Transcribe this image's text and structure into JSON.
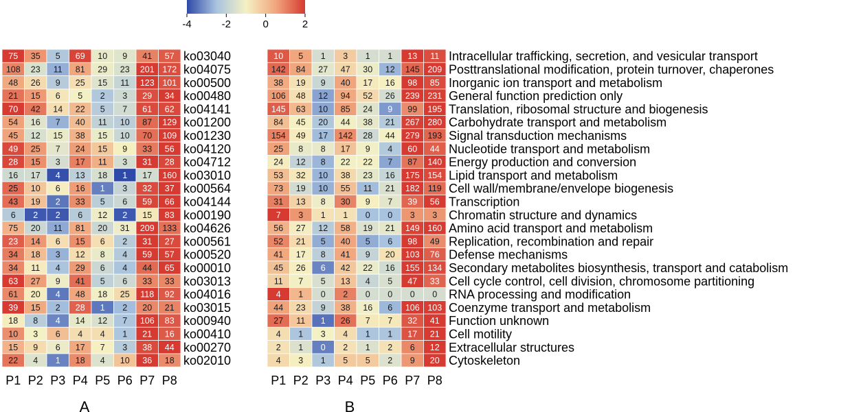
{
  "colorbar": {
    "ticks": [
      "-4",
      "-2",
      "0",
      "2"
    ],
    "stops": [
      "#2f49a8",
      "#a9c3df",
      "#f5f1c4",
      "#f1a77e",
      "#d63a31"
    ],
    "range": [
      -4,
      2
    ]
  },
  "chart_data": [
    {
      "type": "heatmap",
      "panel_label": "A",
      "columns": [
        "P1",
        "P2",
        "P3",
        "P4",
        "P5",
        "P6",
        "P7",
        "P8"
      ],
      "rows": [
        "ko03040",
        "ko04075",
        "ko00500",
        "ko00480",
        "ko04141",
        "ko01200",
        "ko01230",
        "ko04120",
        "ko04712",
        "ko03010",
        "ko00564",
        "ko04144",
        "ko00190",
        "ko04626",
        "ko00561",
        "ko00520",
        "ko00010",
        "ko03013",
        "ko04016",
        "ko03015",
        "ko00940",
        "ko00410",
        "ko00270",
        "ko02010"
      ],
      "values": [
        [
          75,
          35,
          5,
          69,
          10,
          9,
          41,
          57
        ],
        [
          108,
          23,
          11,
          81,
          29,
          23,
          201,
          172
        ],
        [
          48,
          26,
          9,
          25,
          15,
          11,
          123,
          101
        ],
        [
          21,
          15,
          6,
          5,
          2,
          3,
          29,
          34
        ],
        [
          70,
          42,
          14,
          22,
          5,
          7,
          61,
          62
        ],
        [
          54,
          16,
          7,
          40,
          11,
          10,
          87,
          129
        ],
        [
          45,
          12,
          15,
          38,
          15,
          10,
          70,
          109
        ],
        [
          49,
          25,
          7,
          24,
          15,
          9,
          33,
          56
        ],
        [
          28,
          15,
          3,
          17,
          11,
          3,
          31,
          28
        ],
        [
          16,
          17,
          4,
          13,
          18,
          1,
          17,
          160
        ],
        [
          25,
          10,
          6,
          16,
          1,
          3,
          32,
          37
        ],
        [
          43,
          19,
          2,
          33,
          5,
          6,
          59,
          66
        ],
        [
          6,
          2,
          2,
          6,
          12,
          2,
          15,
          83
        ],
        [
          75,
          20,
          11,
          81,
          20,
          31,
          209,
          133
        ],
        [
          23,
          14,
          6,
          15,
          6,
          2,
          31,
          27
        ],
        [
          34,
          18,
          3,
          12,
          8,
          4,
          59,
          57
        ],
        [
          34,
          11,
          4,
          29,
          6,
          4,
          44,
          65
        ],
        [
          63,
          27,
          9,
          41,
          5,
          6,
          33,
          33
        ],
        [
          61,
          20,
          4,
          48,
          18,
          25,
          118,
          92
        ],
        [
          39,
          15,
          2,
          28,
          1,
          2,
          20,
          21
        ],
        [
          18,
          8,
          4,
          14,
          12,
          7,
          106,
          83
        ],
        [
          10,
          3,
          6,
          4,
          4,
          1,
          21,
          16
        ],
        [
          15,
          9,
          6,
          17,
          7,
          3,
          38,
          44
        ],
        [
          22,
          4,
          1,
          18,
          4,
          10,
          36,
          18
        ]
      ]
    },
    {
      "type": "heatmap",
      "panel_label": "B",
      "columns": [
        "P1",
        "P2",
        "P3",
        "P4",
        "P5",
        "P6",
        "P7",
        "P8"
      ],
      "rows": [
        "Intracellular trafficking, secretion, and vesicular transport",
        "Posttranslational modification, protein turnover, chaperones",
        "Inorganic ion transport and metabolism",
        "General function prediction only",
        "Translation, ribosomal structure and biogenesis",
        "Carbohydrate transport and metabolism",
        "Signal transduction mechanisms",
        "Nucleotide transport and metabolism",
        "Energy production and conversion",
        "Lipid transport and metabolism",
        "Cell wall/membrane/envelope biogenesis",
        "Transcription",
        "Chromatin structure and dynamics",
        "Amino acid transport and metabolism",
        "Replication, recombination and repair",
        "Defense mechanisms",
        "Secondary metabolites biosynthesis, transport and catabolism",
        "Cell cycle control, cell division, chromosome partitioning",
        "RNA processing and modification",
        "Coenzyme transport and metabolism",
        "Function unknown",
        "Cell motility",
        "Extracellular structures",
        "Cytoskeleton"
      ],
      "values": [
        [
          10,
          5,
          1,
          3,
          1,
          1,
          13,
          11
        ],
        [
          142,
          84,
          27,
          47,
          30,
          12,
          145,
          209
        ],
        [
          38,
          19,
          9,
          40,
          17,
          16,
          98,
          85
        ],
        [
          106,
          48,
          12,
          94,
          52,
          26,
          239,
          231
        ],
        [
          145,
          63,
          10,
          85,
          24,
          9,
          99,
          195
        ],
        [
          84,
          45,
          20,
          44,
          38,
          21,
          267,
          280
        ],
        [
          154,
          49,
          17,
          142,
          28,
          44,
          279,
          193
        ],
        [
          25,
          8,
          8,
          17,
          9,
          4,
          60,
          44
        ],
        [
          24,
          12,
          8,
          22,
          22,
          7,
          87,
          140
        ],
        [
          53,
          32,
          10,
          38,
          23,
          16,
          175,
          154
        ],
        [
          73,
          19,
          10,
          55,
          11,
          21,
          182,
          119
        ],
        [
          31,
          13,
          8,
          30,
          9,
          7,
          39,
          56
        ],
        [
          7,
          3,
          1,
          1,
          0,
          0,
          3,
          3
        ],
        [
          56,
          27,
          12,
          58,
          19,
          21,
          149,
          160
        ],
        [
          52,
          21,
          5,
          40,
          5,
          6,
          98,
          49
        ],
        [
          41,
          17,
          8,
          41,
          9,
          20,
          103,
          76
        ],
        [
          45,
          26,
          6,
          42,
          22,
          16,
          155,
          134
        ],
        [
          11,
          7,
          5,
          13,
          4,
          5,
          47,
          33
        ],
        [
          4,
          1,
          0,
          2,
          0,
          0,
          0,
          0
        ],
        [
          44,
          23,
          9,
          38,
          16,
          6,
          106,
          103
        ],
        [
          27,
          11,
          1,
          26,
          7,
          7,
          32,
          41
        ],
        [
          4,
          1,
          3,
          4,
          1,
          1,
          17,
          21
        ],
        [
          2,
          1,
          0,
          2,
          1,
          2,
          6,
          12
        ],
        [
          4,
          3,
          1,
          5,
          5,
          2,
          9,
          20
        ]
      ]
    }
  ]
}
